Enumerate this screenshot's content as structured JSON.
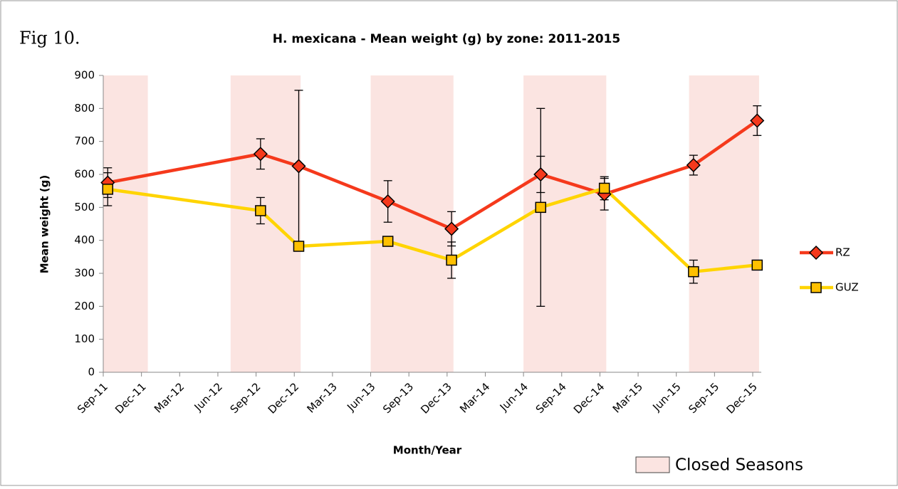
{
  "chart_data": {
    "type": "line",
    "figure_label": "Fig 10.",
    "title": "H. mexicana - Mean weight (g) by zone: 2011-2015",
    "x_label": "Month/Year",
    "y_label": "Mean weight (g)",
    "xticks": [
      "Sep-11",
      "Dec-11",
      "Mar-12",
      "Jun-12",
      "Sep-12",
      "Dec-12",
      "Mar-13",
      "Jun-13",
      "Sep-13",
      "Dec-13",
      "Mar-14",
      "Jun-14",
      "Sep-14",
      "Dec-14",
      "Mar-15",
      "Jun-15",
      "Sep-15",
      "Dec-15"
    ],
    "x": [
      "Sep-11",
      "Sep-12",
      "Dec-12",
      "Jul-13",
      "Dec-13",
      "Jul-14",
      "Dec-14",
      "Jul-15",
      "Dec-15"
    ],
    "series": [
      {
        "name": "RZ",
        "color": "#f5391c",
        "marker": "diamond",
        "values": [
          575,
          662,
          625,
          518,
          435,
          600,
          540,
          628,
          763
        ],
        "errors": [
          45,
          46,
          230,
          63,
          52,
          55,
          48,
          30,
          45
        ]
      },
      {
        "name": "GUZ",
        "color": "#ffd400",
        "marker": "square",
        "values": [
          555,
          490,
          382,
          397,
          340,
          500,
          558,
          305,
          325
        ],
        "errors": [
          50,
          40,
          null,
          null,
          55,
          300,
          35,
          35,
          null
        ]
      }
    ],
    "ylim": [
      0,
      900
    ],
    "yticks": [
      0,
      100,
      200,
      300,
      400,
      500,
      600,
      700,
      800,
      900
    ],
    "closed_seasons": {
      "name": "Closed Seasons",
      "color": "#fbe4e1",
      "periods": [
        [
          "Sep-11",
          "Dec-11"
        ],
        [
          "Jul-12",
          "Dec-12"
        ],
        [
          "Jun-13",
          "Dec-13"
        ],
        [
          "Jun-14",
          "Dec-14"
        ],
        [
          "Jul-15",
          "Dec-15"
        ]
      ]
    }
  }
}
